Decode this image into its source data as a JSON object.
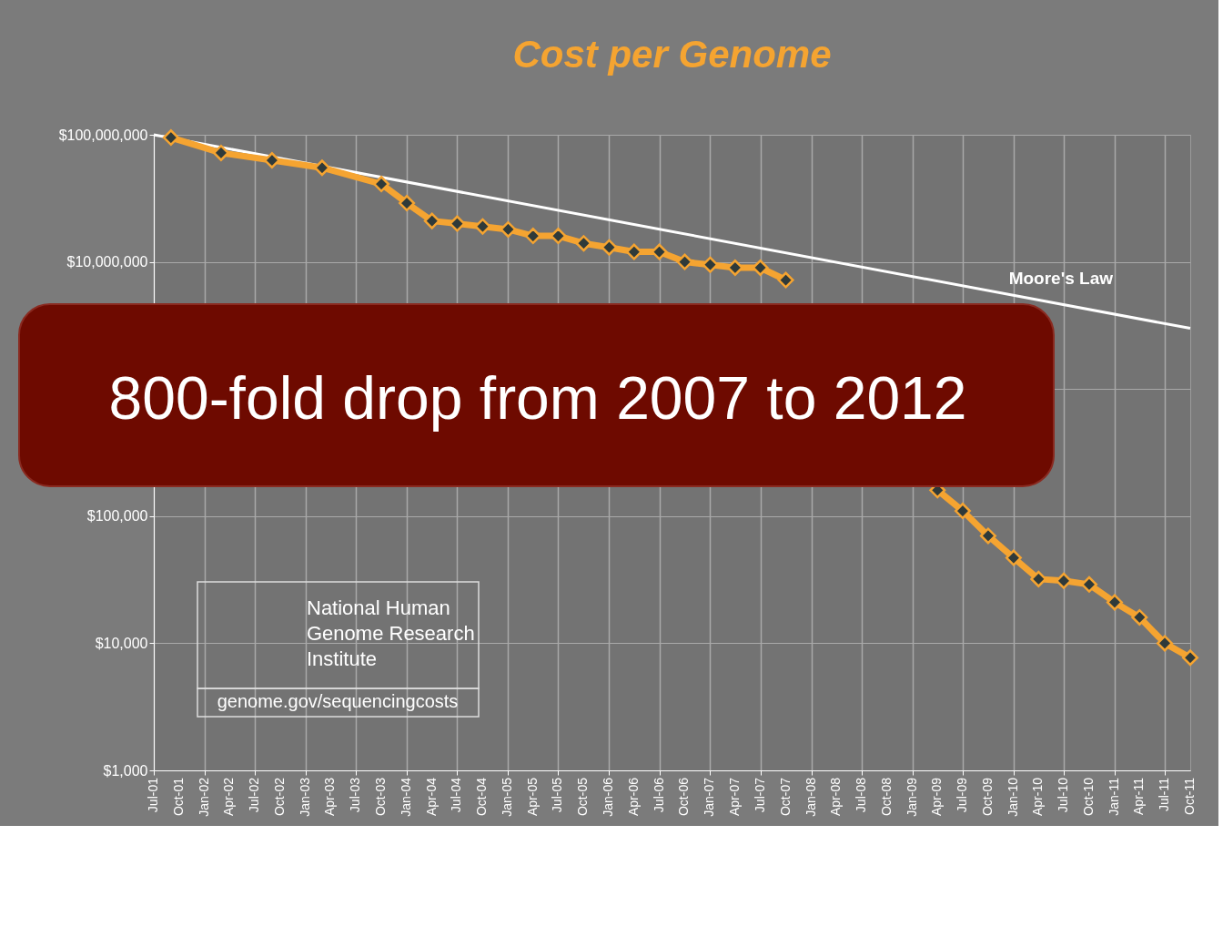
{
  "chart_data": {
    "type": "line",
    "title": "Cost per Genome",
    "log": "y",
    "grid": true,
    "marker": "diamond",
    "line_style": "solid",
    "xlim": [
      "2001-07",
      "2011-10"
    ],
    "ylim": [
      1000,
      100000000
    ],
    "yticks": [
      {
        "value": 1000,
        "label": "$1,000"
      },
      {
        "value": 10000,
        "label": "$10,000"
      },
      {
        "value": 100000,
        "label": "$100,000"
      },
      {
        "value": 1000000,
        "label": null
      },
      {
        "value": 10000000,
        "label": "$10,000,000"
      },
      {
        "value": 100000000,
        "label": "$100,000,000"
      }
    ],
    "xticks": [
      {
        "value": "2001-07",
        "label": "Jul-01"
      },
      {
        "value": "2001-10",
        "label": "Oct-01"
      },
      {
        "value": "2002-01",
        "label": "Jan-02"
      },
      {
        "value": "2002-04",
        "label": "Apr-02"
      },
      {
        "value": "2002-07",
        "label": "Jul-02"
      },
      {
        "value": "2002-10",
        "label": "Oct-02"
      },
      {
        "value": "2003-01",
        "label": "Jan-03"
      },
      {
        "value": "2003-04",
        "label": "Apr-03"
      },
      {
        "value": "2003-07",
        "label": "Jul-03"
      },
      {
        "value": "2003-10",
        "label": "Oct-03"
      },
      {
        "value": "2004-01",
        "label": "Jan-04"
      },
      {
        "value": "2004-04",
        "label": "Apr-04"
      },
      {
        "value": "2004-07",
        "label": "Jul-04"
      },
      {
        "value": "2004-10",
        "label": "Oct-04"
      },
      {
        "value": "2005-01",
        "label": "Jan-05"
      },
      {
        "value": "2005-04",
        "label": "Apr-05"
      },
      {
        "value": "2005-07",
        "label": "Jul-05"
      },
      {
        "value": "2005-10",
        "label": "Oct-05"
      },
      {
        "value": "2006-01",
        "label": "Jan-06"
      },
      {
        "value": "2006-04",
        "label": "Apr-06"
      },
      {
        "value": "2006-07",
        "label": "Jul-06"
      },
      {
        "value": "2006-10",
        "label": "Oct-06"
      },
      {
        "value": "2007-01",
        "label": "Jan-07"
      },
      {
        "value": "2007-04",
        "label": "Apr-07"
      },
      {
        "value": "2007-07",
        "label": "Jul-07"
      },
      {
        "value": "2007-10",
        "label": "Oct-07"
      },
      {
        "value": "2008-01",
        "label": "Jan-08"
      },
      {
        "value": "2008-04",
        "label": "Apr-08"
      },
      {
        "value": "2008-07",
        "label": "Jul-08"
      },
      {
        "value": "2008-10",
        "label": "Oct-08"
      },
      {
        "value": "2009-01",
        "label": "Jan-09"
      },
      {
        "value": "2009-04",
        "label": "Apr-09"
      },
      {
        "value": "2009-07",
        "label": "Jul-09"
      },
      {
        "value": "2009-10",
        "label": "Oct-09"
      },
      {
        "value": "2010-01",
        "label": "Jan-10"
      },
      {
        "value": "2010-04",
        "label": "Apr-10"
      },
      {
        "value": "2010-07",
        "label": "Jul-10"
      },
      {
        "value": "2010-10",
        "label": "Oct-10"
      },
      {
        "value": "2011-01",
        "label": "Jan-11"
      },
      {
        "value": "2011-04",
        "label": "Apr-11"
      },
      {
        "value": "2011-07",
        "label": "Jul-11"
      },
      {
        "value": "2011-10",
        "label": "Oct-11"
      }
    ],
    "series": [
      {
        "name": "Moore's Law",
        "type": "line",
        "marker": "none",
        "color": "#ffffff",
        "x": [
          "2001-07",
          "2011-10"
        ],
        "values": [
          100000000,
          3000000
        ]
      },
      {
        "color": "#f5a431",
        "x": [
          "2001-09",
          "2002-03",
          "2002-09",
          "2003-03",
          "2003-10",
          "2004-01",
          "2004-04",
          "2004-07",
          "2004-10",
          "2005-01",
          "2005-04",
          "2005-07",
          "2005-10",
          "2006-01",
          "2006-04",
          "2006-07",
          "2006-10",
          "2007-01",
          "2007-04",
          "2007-07",
          "2007-10",
          "2008-01",
          "2008-04",
          "2008-07",
          "2008-10",
          "2009-01",
          "2009-04",
          "2009-07",
          "2009-10",
          "2010-01",
          "2010-04",
          "2010-07",
          "2010-10",
          "2011-01",
          "2011-04",
          "2011-07",
          "2011-10"
        ],
        "values": [
          95000000,
          72000000,
          63000000,
          55000000,
          41000000,
          29000000,
          21000000,
          20000000,
          19000000,
          18000000,
          16000000,
          16000000,
          14000000,
          13000000,
          12000000,
          12000000,
          10000000,
          9500000,
          9000000,
          9000000,
          7200000,
          null,
          null,
          null,
          null,
          null,
          160000,
          110000,
          70000,
          47000,
          32000,
          31000,
          29000,
          21000,
          16000,
          10000,
          7700
        ]
      }
    ],
    "annotations": [
      "800-fold drop from 2007 to 2012",
      "National Human Genome Research Institute",
      "genome.gov/sequencingcosts"
    ]
  }
}
